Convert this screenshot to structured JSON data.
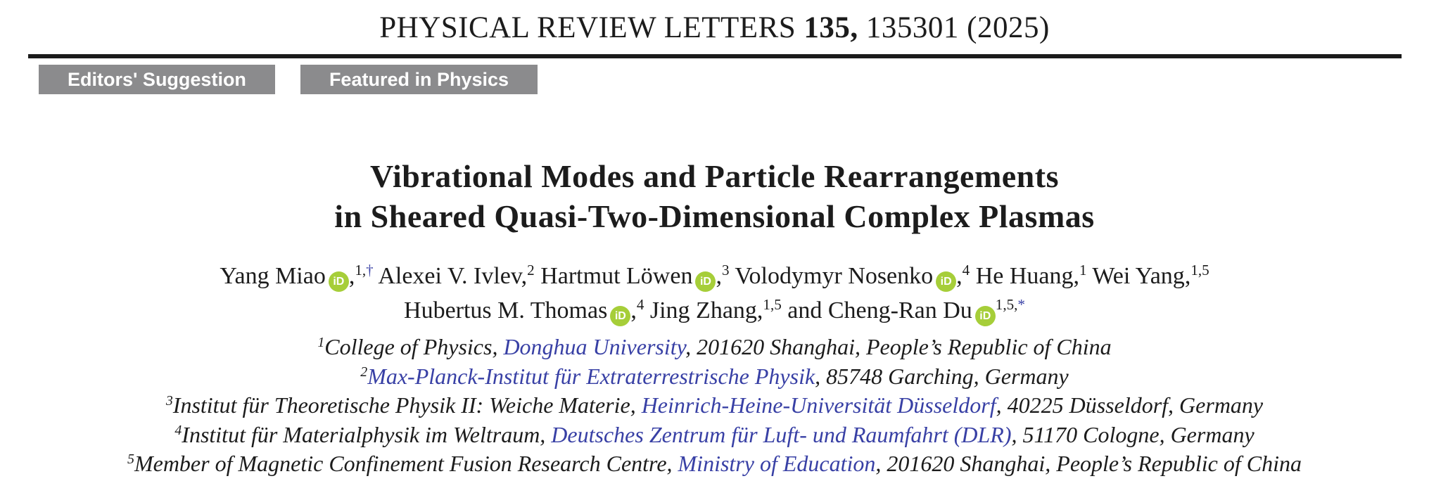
{
  "journal_header": {
    "name": "PHYSICAL REVIEW LETTERS ",
    "volume": "135,",
    "article": " 135301 (2025)"
  },
  "badges": [
    {
      "label": "Editors' Suggestion"
    },
    {
      "label": "Featured in Physics"
    }
  ],
  "title": {
    "line1": "Vibrational Modes and Particle Rearrangements",
    "line2": "in Sheared Quasi-Two-Dimensional Complex Plasmas"
  },
  "icons": {
    "orcid_text": "iD"
  },
  "authors": {
    "lines": [
      [
        {
          "name": "Yang Miao",
          "orcid": true,
          "comma": true,
          "sup": "1,",
          "mark": "†"
        },
        {
          "name": "Alexei V. Ivlev",
          "orcid": false,
          "comma": true,
          "sup": "2",
          "mark": ""
        },
        {
          "name": "Hartmut Löwen",
          "orcid": true,
          "comma": true,
          "sup": "3",
          "mark": ""
        },
        {
          "name": "Volodymyr Nosenko",
          "orcid": true,
          "comma": true,
          "sup": "4",
          "mark": ""
        },
        {
          "name": "He Huang",
          "orcid": false,
          "comma": true,
          "sup": "1",
          "mark": ""
        },
        {
          "name": "Wei Yang",
          "orcid": false,
          "comma": true,
          "sup": "1,5",
          "mark": ""
        }
      ],
      [
        {
          "name": "Hubertus M. Thomas",
          "orcid": true,
          "comma": true,
          "sup": "4",
          "mark": ""
        },
        {
          "name": "Jing Zhang",
          "orcid": false,
          "comma": true,
          "sup": "1,5",
          "mark": ""
        },
        {
          "name": "and Cheng-Ran Du",
          "orcid": true,
          "comma": false,
          "sup": "1,5,",
          "mark": "*"
        }
      ]
    ]
  },
  "affiliations": [
    {
      "sup": "1",
      "pre": "College of Physics, ",
      "link": "Donghua University",
      "post": ", 201620 Shanghai, People’s Republic of China"
    },
    {
      "sup": "2",
      "pre": "",
      "link": "Max-Planck-Institut für Extraterrestrische Physik",
      "post": ", 85748 Garching, Germany"
    },
    {
      "sup": "3",
      "pre": "Institut für Theoretische Physik II: Weiche Materie, ",
      "link": "Heinrich-Heine-Universität Düsseldorf",
      "post": ", 40225 Düsseldorf, Germany"
    },
    {
      "sup": "4",
      "pre": "Institut für Materialphysik im Weltraum, ",
      "link": "Deutsches Zentrum für Luft- und Raumfahrt (DLR)",
      "post": ", 51170 Cologne, Germany"
    },
    {
      "sup": "5",
      "pre": "Member of Magnetic Confinement Fusion Research Centre, ",
      "link": "Ministry of Education",
      "post": ", 201620 Shanghai, People’s Republic of China"
    }
  ],
  "colors": {
    "link_blue": "#3840a5",
    "orcid_green": "#a6ce39",
    "badge_gray": "#8b8b8d",
    "rule_black": "#1b1b1b"
  }
}
